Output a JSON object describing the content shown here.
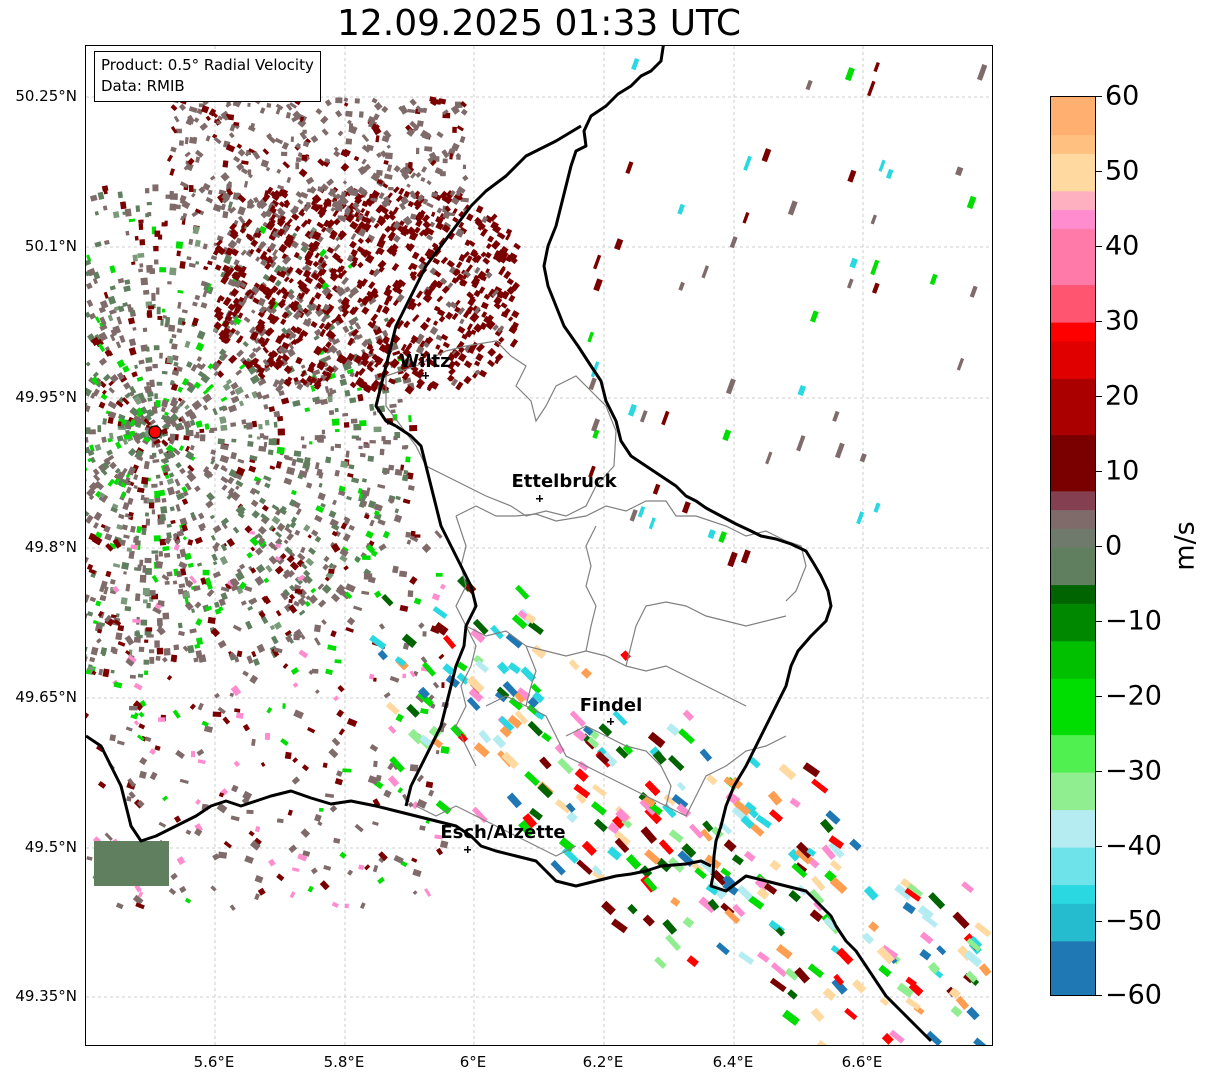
{
  "title": "12.09.2025 01:33 UTC",
  "info_box": {
    "product": "Product: 0.5° Radial Velocity",
    "data_source": "Data: RMIB"
  },
  "map": {
    "lat_labels": [
      "50.25°N",
      "50.1°N",
      "49.95°N",
      "49.8°N",
      "49.65°N",
      "49.5°N",
      "49.35°N"
    ],
    "lon_labels": [
      "5.6°E",
      "5.8°E",
      "6°E",
      "6.2°E",
      "6.4°E",
      "6.6°E"
    ],
    "extent": {
      "lon_min": 5.4,
      "lon_max": 6.8,
      "lat_min": 49.3,
      "lat_max": 50.3
    },
    "cities": [
      {
        "name": "Wiltz",
        "lon": 5.93,
        "lat": 49.966
      },
      {
        "name": "Ettelbruck",
        "lon": 6.104,
        "lat": 49.848
      },
      {
        "name": "Findel",
        "lon": 6.213,
        "lat": 49.626
      },
      {
        "name": "Esch/Alzette",
        "lon": 5.98,
        "lat": 49.496
      }
    ],
    "radar_site": {
      "lon": 5.505,
      "lat": 49.914
    }
  },
  "colorbar": {
    "ticks": [
      "60",
      "50",
      "40",
      "30",
      "20",
      "10",
      "0",
      "−10",
      "−20",
      "−30",
      "−40",
      "−50",
      "−60"
    ],
    "unit": "m/s",
    "vmin": -60,
    "vmax": 60,
    "colors": {
      "dark_blue": "#1f78b4",
      "cyan": "#29d8e0",
      "light_cyan": "#b5ecf1",
      "light_green": "#90ee90",
      "bright_green": "#00dd00",
      "dark_green": "#006400",
      "grey_green": "#5f7f5f",
      "grey_brown": "#806b6b",
      "dark_red": "#7a0000",
      "red": "#ff0000",
      "pink": "#ff8ccf",
      "peach": "#ffd9a0",
      "orange": "#ff9e50"
    }
  }
}
